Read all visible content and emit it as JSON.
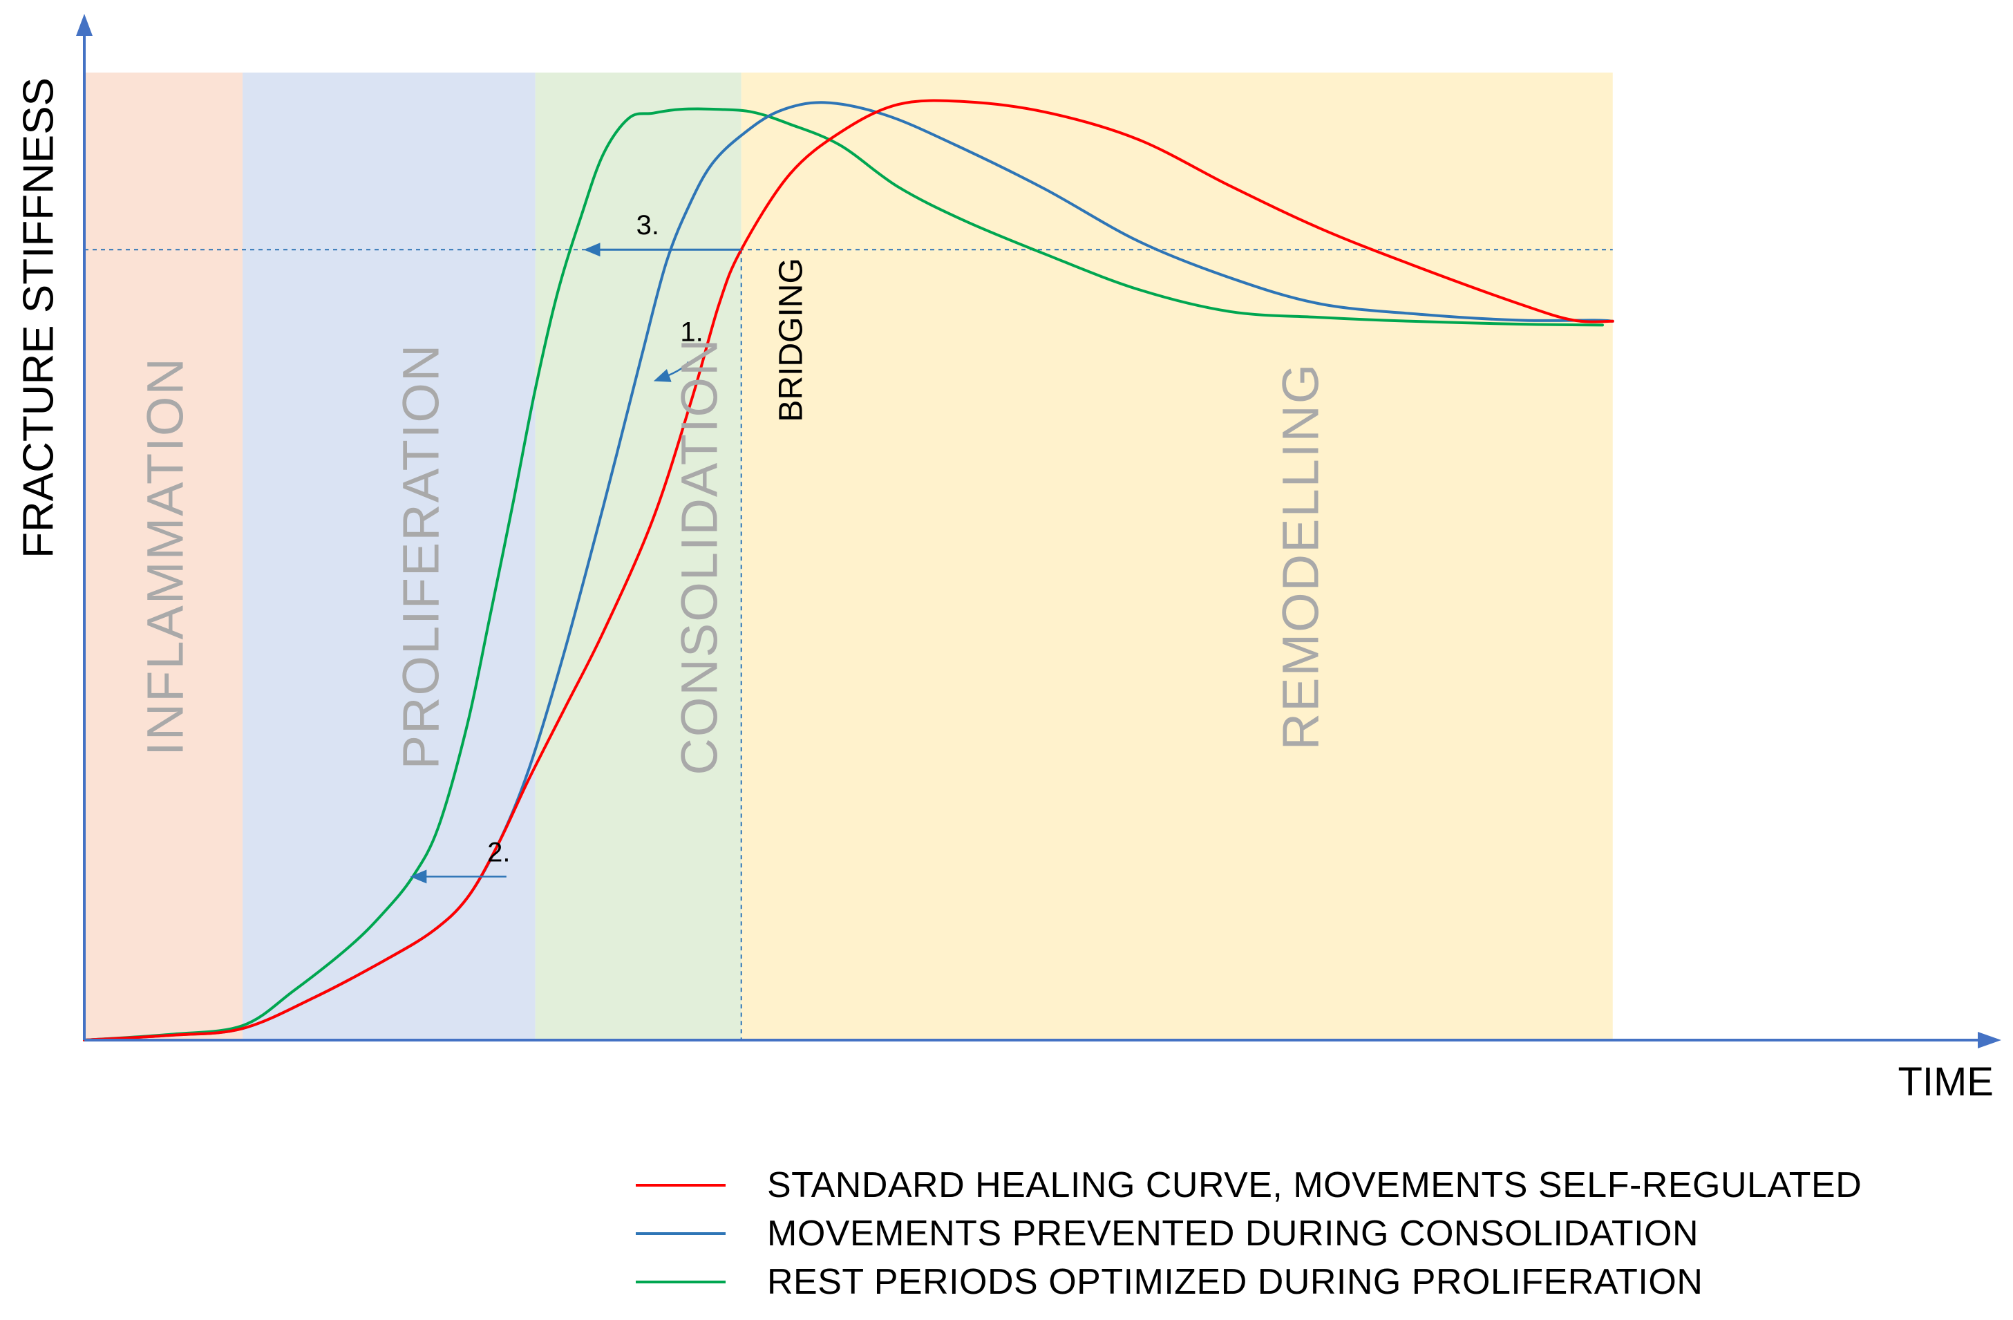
{
  "chart_data": {
    "type": "line",
    "title": "",
    "xlabel": "TIME",
    "ylabel": "FRACTURE STIFFNESS",
    "xlim": [
      0,
      100
    ],
    "ylim": [
      0,
      100
    ],
    "grid": false,
    "legend_position": "bottom-right",
    "phases": [
      {
        "name": "INFLAMMATION",
        "start": 0,
        "end": 9.3,
        "color": "#fbe2d5"
      },
      {
        "name": "PROLIFERATION",
        "start": 9.3,
        "end": 26.5,
        "color": "#dae3f3"
      },
      {
        "name": "CONSOLIDATION",
        "start": 26.5,
        "end": 38.6,
        "color": "#e2efda"
      },
      {
        "name": "REMODELLING",
        "start": 38.6,
        "end": 89.8,
        "color": "#fff2cc"
      }
    ],
    "bridging": {
      "label": "BRIDGING",
      "x": 38.6,
      "y": 81.7
    },
    "annotations": [
      {
        "label": "1.",
        "x": 35.5,
        "y": 70.1,
        "to_x": 33.6,
        "to_y": 68.2
      },
      {
        "label": "2.",
        "x": 24.8,
        "y": 16.9,
        "to_x": 19.3,
        "to_y": 16.9
      },
      {
        "label": "3.",
        "x": 38.6,
        "y": 81.7,
        "to_x": 29.5,
        "to_y": 81.7
      }
    ],
    "series": [
      {
        "name": "STANDARD HEALING CURVE, MOVEMENTS SELF-REGULATED",
        "color": "#ff0000",
        "x": [
          0,
          5.1,
          9.3,
          13.5,
          17.6,
          20.5,
          22.5,
          24.3,
          26.1,
          28.2,
          30.5,
          33.4,
          35.7,
          37.3,
          38.6,
          41.4,
          44.4,
          47.8,
          51.7,
          56.5,
          61.9,
          67.3,
          72.6,
          77.9,
          84.3,
          87.5,
          89.8
        ],
        "y": [
          0,
          0.5,
          1.2,
          4.4,
          8.2,
          11.3,
          14.7,
          20.2,
          26.9,
          34.2,
          42.2,
          53.8,
          66.3,
          76.1,
          81.7,
          89.4,
          93.8,
          96.7,
          97.0,
          95.9,
          93.1,
          88.3,
          83.9,
          80.2,
          76.1,
          74.4,
          74.3
        ]
      },
      {
        "name": "MOVEMENTS PREVENTED DURING CONSOLIDATION",
        "color": "#2e75b6",
        "x": [
          0,
          5.1,
          9.3,
          13.5,
          17.6,
          20.5,
          22.5,
          24.3,
          26.1,
          28.2,
          30.5,
          32.7,
          34.2,
          35.6,
          36.9,
          38.6,
          40.8,
          43.5,
          47.1,
          51.2,
          56.4,
          61.9,
          67.3,
          72.6,
          78.6,
          84.3,
          88.7,
          89.8
        ],
        "y": [
          0,
          0.5,
          1.2,
          4.4,
          8.2,
          11.3,
          14.7,
          20.2,
          27.9,
          40.1,
          55.2,
          70.4,
          80.4,
          86.5,
          90.6,
          93.5,
          96.0,
          96.9,
          95.6,
          92.5,
          88.0,
          82.6,
          78.8,
          76.1,
          75.0,
          74.4,
          74.4,
          74.3
        ]
      },
      {
        "name": "REST PERIODS OPTIMIZED DURING PROLIFERATION",
        "color": "#00a650",
        "x": [
          0,
          5.1,
          9.3,
          12.3,
          15.6,
          17.6,
          19.3,
          20.8,
          22.5,
          23.8,
          25.2,
          26.5,
          27.8,
          29.2,
          30.5,
          32.0,
          33.4,
          35.0,
          37.3,
          39.3,
          41.4,
          44.4,
          47.8,
          51.7,
          56.5,
          61.9,
          67.3,
          72.6,
          77.9,
          84.3,
          89.2
        ],
        "y": [
          0,
          0.6,
          1.5,
          5.1,
          9.7,
          13.2,
          16.9,
          22.0,
          32.6,
          43.5,
          55.6,
          67.3,
          77.2,
          85.2,
          91.6,
          95.3,
          95.8,
          96.2,
          96.2,
          95.9,
          94.7,
          92.5,
          88.2,
          84.7,
          81.2,
          77.6,
          75.3,
          74.7,
          74.3,
          74.0,
          73.9
        ]
      }
    ]
  }
}
